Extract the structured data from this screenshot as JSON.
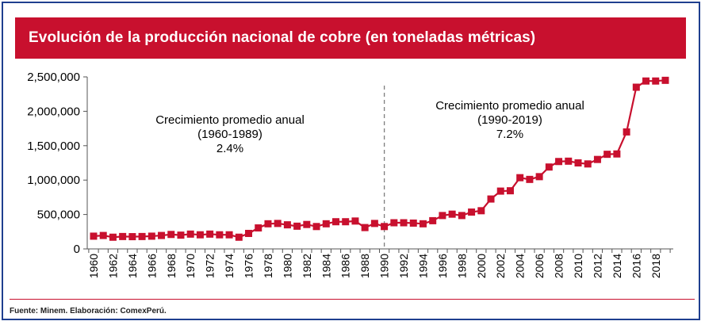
{
  "title": "Evolución de la producción nacional de cobre (en toneladas métricas)",
  "source": "Fuente: Minem. Elaboración: ComexPerú.",
  "colors": {
    "accent": "#c8102e",
    "frame": "#1f3f8f",
    "series": "#c8102e",
    "divider": "#7f7f7f"
  },
  "chart_data": {
    "type": "line",
    "ylim": [
      0,
      2500000
    ],
    "yticks": [
      0,
      500000,
      1000000,
      1500000,
      2000000,
      2500000
    ],
    "ytick_labels": [
      "0",
      "500,000",
      "1,000,000",
      "1,500,000",
      "2,000,000",
      "2,500,000"
    ],
    "xlim": [
      1960,
      2019
    ],
    "xtick_labels": [
      "1960",
      "1962",
      "1964",
      "1966",
      "1968",
      "1970",
      "1972",
      "1974",
      "1976",
      "1978",
      "1980",
      "1982",
      "1984",
      "1986",
      "1988",
      "1990",
      "1992",
      "1994",
      "1996",
      "1998",
      "2000",
      "2002",
      "2004",
      "2006",
      "2008",
      "2010",
      "2012",
      "2014",
      "2016",
      "2018"
    ],
    "divider_year": 1990,
    "annotations": [
      {
        "lines": [
          "Crecimiento promedio anual",
          "(1960-1989)",
          "2.4%"
        ]
      },
      {
        "lines": [
          "Crecimiento promedio anual",
          "(1990-2019)",
          "7.2%"
        ]
      }
    ],
    "x": [
      1960,
      1961,
      1962,
      1963,
      1964,
      1965,
      1966,
      1967,
      1968,
      1969,
      1970,
      1971,
      1972,
      1973,
      1974,
      1975,
      1976,
      1977,
      1978,
      1979,
      1980,
      1981,
      1982,
      1983,
      1984,
      1985,
      1986,
      1987,
      1988,
      1989,
      1990,
      1991,
      1992,
      1993,
      1994,
      1995,
      1996,
      1997,
      1998,
      1999,
      2000,
      2001,
      2002,
      2003,
      2004,
      2005,
      2006,
      2007,
      2008,
      2009,
      2010,
      2011,
      2012,
      2013,
      2014,
      2015,
      2016,
      2017,
      2018,
      2019
    ],
    "values": [
      185000,
      195000,
      170000,
      180000,
      178000,
      180000,
      185000,
      195000,
      210000,
      200000,
      215000,
      205000,
      215000,
      205000,
      205000,
      170000,
      225000,
      305000,
      365000,
      370000,
      350000,
      330000,
      355000,
      325000,
      365000,
      395000,
      395000,
      405000,
      310000,
      370000,
      325000,
      380000,
      380000,
      375000,
      365000,
      410000,
      485000,
      505000,
      485000,
      535000,
      555000,
      725000,
      840000,
      845000,
      1035000,
      1010000,
      1050000,
      1190000,
      1270000,
      1275000,
      1250000,
      1235000,
      1300000,
      1375000,
      1380000,
      1700000,
      2350000,
      2440000,
      2440000,
      2450000
    ]
  }
}
